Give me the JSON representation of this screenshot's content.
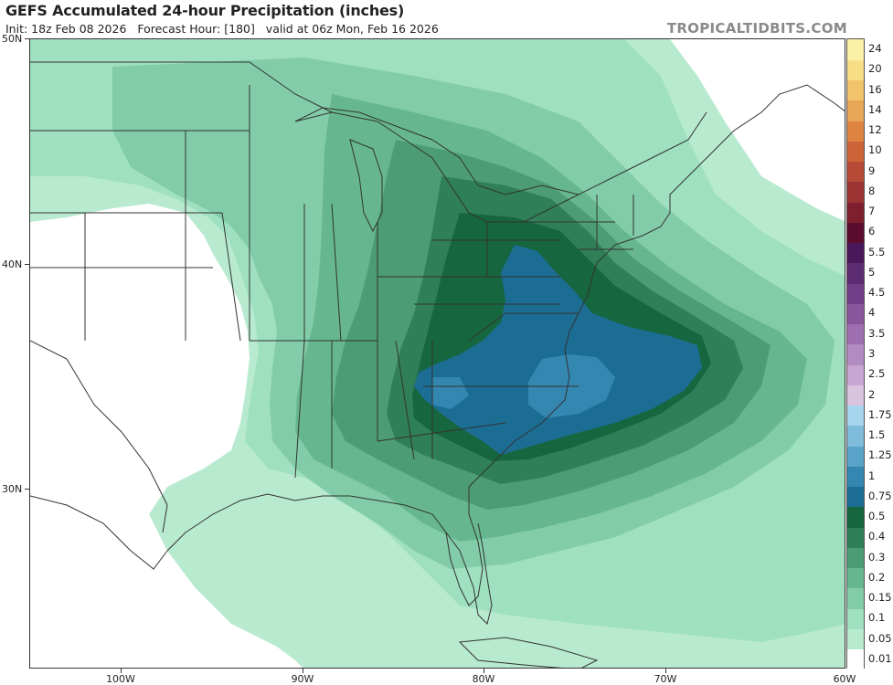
{
  "header": {
    "title": "GEFS Accumulated 24-hour Precipitation (inches)",
    "subtitle": "Init: 18z Feb 08 2026   Forecast Hour: [180]   valid at 06z Mon, Feb 16 2026",
    "brand": "TROPICALTIDBITS.COM"
  },
  "map": {
    "lat_labels": [
      "50N",
      "40N",
      "30N"
    ],
    "lon_labels": [
      "100W",
      "90W",
      "80W",
      "70W",
      "60W"
    ],
    "water_color": "#ffffff",
    "land_outline_color": "#333333"
  },
  "legend": {
    "levels": [
      {
        "label": "0.01",
        "color": "#ffffff"
      },
      {
        "label": "0.05",
        "color": "#b8ead0"
      },
      {
        "label": "0.1",
        "color": "#9fe0c1"
      },
      {
        "label": "0.15",
        "color": "#82ccaa"
      },
      {
        "label": "0.2",
        "color": "#66b78f"
      },
      {
        "label": "0.3",
        "color": "#4c9d75"
      },
      {
        "label": "0.4",
        "color": "#2f7f58"
      },
      {
        "label": "0.5",
        "color": "#16663f"
      },
      {
        "label": "0.75",
        "color": "#1c6d93"
      },
      {
        "label": "1",
        "color": "#3487b0"
      },
      {
        "label": "1.25",
        "color": "#5aa3c8"
      },
      {
        "label": "1.5",
        "color": "#7fbcdc"
      },
      {
        "label": "1.75",
        "color": "#a6d6ee"
      },
      {
        "label": "2",
        "color": "#d9c4e0"
      },
      {
        "label": "2.5",
        "color": "#c8a6d3"
      },
      {
        "label": "3",
        "color": "#b28bc2"
      },
      {
        "label": "3.5",
        "color": "#9d6fb0"
      },
      {
        "label": "4",
        "color": "#87569d"
      },
      {
        "label": "4.5",
        "color": "#703f88"
      },
      {
        "label": "5",
        "color": "#5c2c72"
      },
      {
        "label": "5.5",
        "color": "#48185a"
      },
      {
        "label": "6",
        "color": "#5a0c2e"
      },
      {
        "label": "7",
        "color": "#7e1f2d"
      },
      {
        "label": "8",
        "color": "#9c3333"
      },
      {
        "label": "9",
        "color": "#b74a36"
      },
      {
        "label": "10",
        "color": "#cc6438"
      },
      {
        "label": "12",
        "color": "#dd8443"
      },
      {
        "label": "14",
        "color": "#e8a657"
      },
      {
        "label": "16",
        "color": "#f1c46c"
      },
      {
        "label": "20",
        "color": "#f7de86"
      },
      {
        "label": "24",
        "color": "#fbf0a6"
      }
    ]
  }
}
